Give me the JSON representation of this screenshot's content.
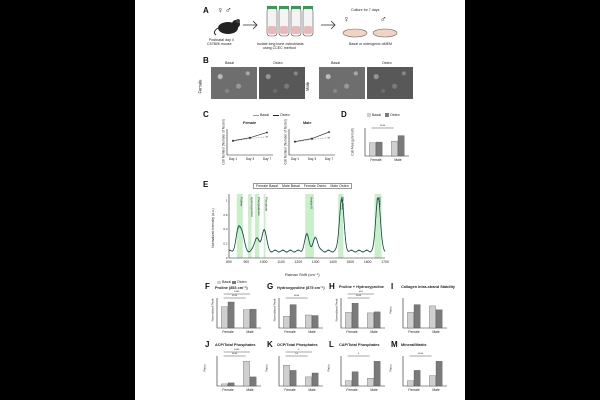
{
  "panelA": {
    "letter": "A",
    "mouse_caption": [
      "Postnatal day 4",
      "C57Bl/6 mouse"
    ],
    "tubes_caption": [
      "Isolate long bone osteoblasts",
      "using CCEC method"
    ],
    "culture_caption": "Culture for 7 days",
    "dish_caption": [
      "Basal or osteogenic αMEM"
    ],
    "sex_symbols": [
      "♀",
      "♂"
    ]
  },
  "panelB": {
    "letter": "B",
    "female_label": "Female",
    "male_label": "Male",
    "col_labels": [
      "Basal",
      "Osteo",
      "Basal",
      "Osteo"
    ]
  },
  "legend_basal_osteo": {
    "basal": "Basal",
    "osteo": "Osteo"
  },
  "panelC": {
    "letter": "C",
    "female_title": "Female",
    "male_title": "Male",
    "ylabel": "Cell Number (Number of Nuclei)",
    "x": [
      "Day 1",
      "Day 3",
      "Day 7"
    ]
  },
  "panelD": {
    "letter": "D",
    "ylabel": "Cell Area (µm²/cell)",
    "categories": [
      "Female",
      "Male"
    ],
    "signif": "****"
  },
  "panelE": {
    "letter": "E",
    "legend": [
      "Female Basal",
      "Male Basal",
      "Female Osteo",
      "Male Osteo"
    ],
    "xlabel": "Raman Shift (cm⁻¹)",
    "ylabel": "Normalized Intensity (a.u.)",
    "band_labels": [
      "Proline",
      "Hydroxyproline",
      "Phenylalanine",
      "Phosphate",
      "Amide III",
      "CH₂ Wag",
      "Amide I"
    ],
    "xticks": [
      "800",
      "900",
      "1000",
      "1100",
      "1200",
      "1300",
      "1400",
      "1500",
      "1600",
      "1700"
    ]
  },
  "small_panels": [
    {
      "letter": "F",
      "title": "Proline (853 cm⁻¹)",
      "ylabel": "Normalized Peak",
      "signif": [
        "****",
        "****"
      ]
    },
    {
      "letter": "G",
      "title": "Hydroxyproline (875 cm⁻¹)",
      "ylabel": "Normalized Peak",
      "signif": [
        "****"
      ]
    },
    {
      "letter": "H",
      "title": "Proline + Hydroxyproline",
      "ylabel": "Normalized Peak",
      "signif": [
        "****",
        "***"
      ]
    },
    {
      "letter": "I",
      "title": "Collagen Intra-strand Stability",
      "ylabel": "Ratio",
      "signif": []
    },
    {
      "letter": "J",
      "title": "ACP/Total Phosphates",
      "ylabel": "Ratio",
      "signif": [
        "****",
        "****"
      ]
    },
    {
      "letter": "K",
      "title": "OCP/Total Phosphates",
      "ylabel": "Ratio",
      "signif": [
        "**",
        "*"
      ]
    },
    {
      "letter": "L",
      "title": "CAP/Total Phosphates",
      "ylabel": "Ratio",
      "signif": [
        "*"
      ]
    },
    {
      "letter": "M",
      "title": "Mineral/Matrix",
      "ylabel": "Ratio",
      "signif": [
        "****"
      ]
    }
  ],
  "category_labels": [
    "Female",
    "Male"
  ],
  "chart_data": [
    {
      "type": "line",
      "panel": "C-female",
      "x": [
        "Day 1",
        "Day 3",
        "Day 7"
      ],
      "series": [
        {
          "name": "Basal",
          "values": [
            320,
            380,
            420
          ]
        },
        {
          "name": "Osteo",
          "values": [
            330,
            400,
            520
          ]
        }
      ]
    },
    {
      "type": "line",
      "panel": "C-male",
      "x": [
        "Day 1",
        "Day 3",
        "Day 7"
      ],
      "series": [
        {
          "name": "Basal",
          "values": [
            300,
            360,
            400
          ]
        },
        {
          "name": "Osteo",
          "values": [
            310,
            380,
            530
          ]
        }
      ]
    },
    {
      "type": "bar",
      "panel": "D",
      "categories": [
        "Female",
        "Male"
      ],
      "series": [
        {
          "name": "Basal",
          "values": [
            0.55,
            0.62
          ]
        },
        {
          "name": "Osteo",
          "values": [
            0.58,
            0.85
          ]
        }
      ]
    },
    {
      "type": "bar",
      "panel": "F",
      "categories": [
        "Female",
        "Male"
      ],
      "series": [
        {
          "name": "Basal",
          "values": [
            0.82,
            0.7
          ]
        },
        {
          "name": "Osteo",
          "values": [
            1.0,
            0.72
          ]
        }
      ]
    },
    {
      "type": "bar",
      "panel": "G",
      "categories": [
        "Female",
        "Male"
      ],
      "series": [
        {
          "name": "Basal",
          "values": [
            0.45,
            0.5
          ]
        },
        {
          "name": "Osteo",
          "values": [
            0.9,
            0.48
          ]
        }
      ]
    },
    {
      "type": "bar",
      "panel": "H",
      "categories": [
        "Female",
        "Male"
      ],
      "series": [
        {
          "name": "Basal",
          "values": [
            0.6,
            0.58
          ]
        },
        {
          "name": "Osteo",
          "values": [
            0.95,
            0.62
          ]
        }
      ]
    },
    {
      "type": "bar",
      "panel": "I",
      "categories": [
        "Female",
        "Male"
      ],
      "series": [
        {
          "name": "Basal",
          "values": [
            0.6,
            0.85
          ]
        },
        {
          "name": "Osteo",
          "values": [
            0.9,
            0.7
          ]
        }
      ]
    },
    {
      "type": "bar",
      "panel": "J",
      "categories": [
        "Female",
        "Male"
      ],
      "series": [
        {
          "name": "Basal",
          "values": [
            0.08,
            0.95
          ]
        },
        {
          "name": "Osteo",
          "values": [
            0.12,
            0.35
          ]
        }
      ]
    },
    {
      "type": "bar",
      "panel": "K",
      "categories": [
        "Female",
        "Male"
      ],
      "series": [
        {
          "name": "Basal",
          "values": [
            0.8,
            0.35
          ]
        },
        {
          "name": "Osteo",
          "values": [
            0.6,
            0.5
          ]
        }
      ]
    },
    {
      "type": "bar",
      "panel": "L",
      "categories": [
        "Female",
        "Male"
      ],
      "series": [
        {
          "name": "Basal",
          "values": [
            0.2,
            0.3
          ]
        },
        {
          "name": "Osteo",
          "values": [
            0.55,
            0.95
          ]
        }
      ]
    },
    {
      "type": "bar",
      "panel": "M",
      "categories": [
        "Female",
        "Male"
      ],
      "series": [
        {
          "name": "Basal",
          "values": [
            0.2,
            0.4
          ]
        },
        {
          "name": "Osteo",
          "values": [
            0.6,
            0.95
          ]
        }
      ]
    }
  ],
  "colors": {
    "basal": "#cfcfcf",
    "osteo": "#7a7a7a",
    "band": "#c8efc8",
    "spectrum_dark": "#1a3a5a",
    "spectrum_green": "#2e8b57"
  }
}
